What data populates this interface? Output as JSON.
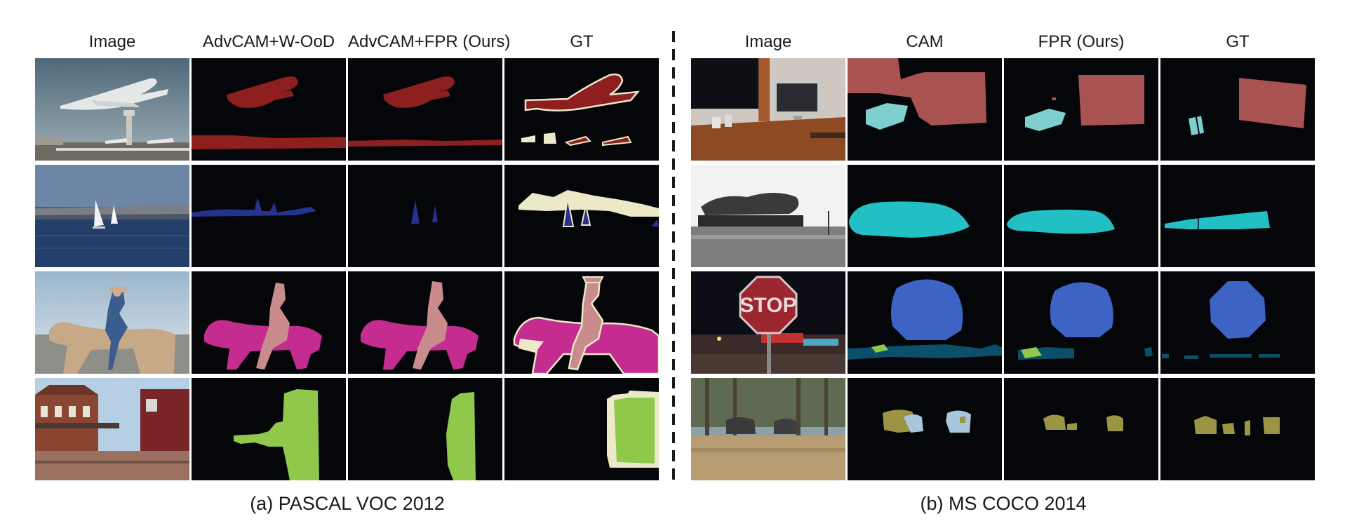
{
  "figure": {
    "panel_a": {
      "columns": [
        "Image",
        "AdvCAM+W-OoD",
        "AdvCAM+FPR (Ours)",
        "GT"
      ],
      "caption": "(a) PASCAL VOC 2012"
    },
    "panel_b": {
      "columns": [
        "Image",
        "CAM",
        "FPR (Ours)",
        "GT"
      ],
      "caption": "(b)  MS COCO 2014"
    },
    "photo_text": {
      "stop_sign": "STOP"
    }
  },
  "colors": {
    "background": "#05060a",
    "aeroplane": "#8e1f1f",
    "boat": "#25338f",
    "horse": "#c42d8f",
    "person": "#c98b8b",
    "train": "#8fc84b",
    "boundary": "#ece9c9",
    "tv": "#a95252",
    "cup": "#7fcfcf",
    "coco_train": "#22c0c4",
    "stop_sign": "#3d64c4",
    "car": "#0b4f6a",
    "elephant": "#9b9442",
    "elephant_light": "#a9c7dc"
  }
}
